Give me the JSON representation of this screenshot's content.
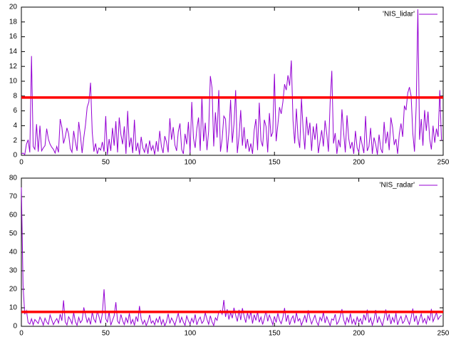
{
  "chart_data": [
    {
      "type": "line",
      "xlim": [
        0,
        250
      ],
      "xticks": [
        0,
        50,
        100,
        150,
        200,
        250
      ],
      "ylim": [
        0,
        20
      ],
      "yticks": [
        0,
        2,
        4,
        6,
        8,
        10,
        12,
        14,
        16,
        18,
        20
      ],
      "legend": "upper right",
      "hlines": [
        {
          "value": 7.8,
          "color": "#ff0000"
        }
      ],
      "x": [
        0,
        1,
        2,
        3,
        4,
        5,
        6,
        7,
        8,
        9,
        10,
        11,
        12,
        13,
        14,
        15,
        16,
        17,
        18,
        19,
        20,
        21,
        22,
        23,
        24,
        25,
        26,
        27,
        28,
        29,
        30,
        31,
        32,
        33,
        34,
        35,
        36,
        37,
        38,
        39,
        40,
        41,
        42,
        43,
        44,
        45,
        46,
        47,
        48,
        49,
        50,
        51,
        52,
        53,
        54,
        55,
        56,
        57,
        58,
        59,
        60,
        61,
        62,
        63,
        64,
        65,
        66,
        67,
        68,
        69,
        70,
        71,
        72,
        73,
        74,
        75,
        76,
        77,
        78,
        79,
        80,
        81,
        82,
        83,
        84,
        85,
        86,
        87,
        88,
        89,
        90,
        91,
        92,
        93,
        94,
        95,
        96,
        97,
        98,
        99,
        100,
        101,
        102,
        103,
        104,
        105,
        106,
        107,
        108,
        109,
        110,
        111,
        112,
        113,
        114,
        115,
        116,
        117,
        118,
        119,
        120,
        121,
        122,
        123,
        124,
        125,
        126,
        127,
        128,
        129,
        130,
        131,
        132,
        133,
        134,
        135,
        136,
        137,
        138,
        139,
        140,
        141,
        142,
        143,
        144,
        145,
        146,
        147,
        148,
        149,
        150,
        151,
        152,
        153,
        154,
        155,
        156,
        157,
        158,
        159,
        160,
        161,
        162,
        163,
        164,
        165,
        166,
        167,
        168,
        169,
        170,
        171,
        172,
        173,
        174,
        175,
        176,
        177,
        178,
        179,
        180,
        181,
        182,
        183,
        184,
        185,
        186,
        187,
        188,
        189,
        190,
        191,
        192,
        193,
        194,
        195,
        196,
        197,
        198,
        199,
        200,
        201,
        202,
        203,
        204,
        205,
        206,
        207,
        208,
        209,
        210,
        211,
        212,
        213,
        214,
        215,
        216,
        217,
        218,
        219,
        220,
        221,
        222,
        223,
        224,
        225,
        226,
        227,
        228,
        229,
        230,
        231,
        232,
        233,
        234,
        235,
        236,
        237,
        238,
        239,
        240,
        241,
        242,
        243,
        244,
        245,
        246,
        247,
        248,
        249
      ],
      "series": [
        {
          "name": "'NIS_lidar'",
          "color": "#9400d3",
          "values": [
            0.2,
            0.3,
            0.1,
            1.5,
            2.1,
            0.4,
            13.4,
            1.2,
            0.8,
            4.2,
            0.5,
            4.0,
            0.6,
            1.0,
            1.3,
            3.6,
            2.2,
            1.5,
            1.1,
            0.8,
            0.3,
            1.2,
            0.4,
            4.9,
            3.8,
            1.6,
            2.5,
            3.7,
            2.9,
            0.9,
            0.4,
            3.3,
            1.8,
            0.6,
            4.5,
            2.7,
            0.3,
            2.4,
            4.1,
            6.5,
            7.2,
            9.8,
            3.1,
            0.5,
            1.6,
            0.2,
            1.0,
            0.7,
            1.8,
            0.5,
            5.3,
            0.1,
            2.2,
            0.6,
            3.7,
            1.3,
            4.6,
            0.4,
            5.1,
            2.8,
            1.5,
            3.9,
            0.2,
            6.0,
            1.1,
            2.4,
            0.3,
            4.8,
            0.6,
            1.7,
            0.1,
            2.5,
            1.0,
            0.4,
            1.6,
            0.2,
            2.0,
            0.7,
            1.3,
            0.1,
            1.9,
            0.5,
            3.3,
            1.2,
            0.3,
            2.6,
            1.8,
            0.4,
            5.0,
            2.1,
            3.8,
            1.4,
            0.6,
            3.2,
            4.3,
            0.8,
            0.2,
            2.9,
            1.5,
            4.5,
            0.3,
            7.2,
            2.3,
            1.0,
            3.6,
            5.1,
            0.6,
            7.9,
            1.9,
            4.4,
            0.7,
            3.3,
            10.7,
            9.1,
            1.2,
            5.8,
            2.4,
            8.8,
            0.5,
            2.2,
            5.3,
            4.9,
            0.4,
            3.1,
            7.5,
            1.7,
            4.2,
            8.8,
            0.3,
            2.6,
            6.1,
            1.3,
            3.8,
            0.9,
            2.2,
            0.5,
            1.6,
            0.2,
            3.4,
            4.9,
            0.7,
            7.1,
            2.0,
            1.2,
            4.8,
            3.9,
            0.4,
            5.7,
            2.5,
            3.1,
            11.0,
            1.9,
            4.1,
            6.5,
            5.6,
            7.2,
            9.6,
            8.8,
            10.8,
            9.4,
            12.8,
            4.7,
            1.6,
            6.3,
            2.3,
            1.0,
            7.7,
            3.5,
            0.8,
            5.2,
            2.7,
            4.4,
            0.6,
            3.9,
            2.1,
            4.3,
            0.3,
            1.9,
            3.4,
            1.2,
            4.7,
            2.9,
            0.5,
            7.1,
            11.4,
            1.6,
            3.0,
            0.2,
            2.1,
            1.1,
            6.2,
            3.1,
            0.4,
            5.4,
            2.3,
            0.9,
            1.8,
            0.2,
            3.3,
            1.0,
            0.4,
            2.6,
            1.4,
            0.3,
            5.3,
            0.6,
            1.2,
            3.7,
            0.2,
            2.4,
            1.5,
            0.1,
            2.8,
            0.9,
            0.3,
            4.5,
            1.6,
            3.2,
            0.7,
            5.1,
            3.8,
            1.4,
            2.2,
            0.2,
            2.9,
            4.3,
            2.5,
            6.7,
            6.1,
            8.4,
            9.2,
            8.0,
            3.0,
            0.5,
            6.6,
            19.7,
            2.1,
            4.9,
            1.3,
            6.1,
            3.3,
            5.9,
            2.2,
            0.8,
            4.0,
            1.7,
            3.6,
            2.5,
            8.8,
            2.0
          ]
        }
      ]
    },
    {
      "type": "line",
      "xlim": [
        0,
        250
      ],
      "xticks": [
        0,
        50,
        100,
        150,
        200,
        250
      ],
      "ylim": [
        0,
        80
      ],
      "yticks": [
        0,
        10,
        20,
        30,
        40,
        50,
        60,
        70,
        80
      ],
      "legend": "upper right",
      "hlines": [
        {
          "value": 7.8,
          "color": "#ff0000"
        }
      ],
      "x": [
        0,
        1,
        2,
        3,
        4,
        5,
        6,
        7,
        8,
        9,
        10,
        11,
        12,
        13,
        14,
        15,
        16,
        17,
        18,
        19,
        20,
        21,
        22,
        23,
        24,
        25,
        26,
        27,
        28,
        29,
        30,
        31,
        32,
        33,
        34,
        35,
        36,
        37,
        38,
        39,
        40,
        41,
        42,
        43,
        44,
        45,
        46,
        47,
        48,
        49,
        50,
        51,
        52,
        53,
        54,
        55,
        56,
        57,
        58,
        59,
        60,
        61,
        62,
        63,
        64,
        65,
        66,
        67,
        68,
        69,
        70,
        71,
        72,
        73,
        74,
        75,
        76,
        77,
        78,
        79,
        80,
        81,
        82,
        83,
        84,
        85,
        86,
        87,
        88,
        89,
        90,
        91,
        92,
        93,
        94,
        95,
        96,
        97,
        98,
        99,
        100,
        101,
        102,
        103,
        104,
        105,
        106,
        107,
        108,
        109,
        110,
        111,
        112,
        113,
        114,
        115,
        116,
        117,
        118,
        119,
        120,
        121,
        122,
        123,
        124,
        125,
        126,
        127,
        128,
        129,
        130,
        131,
        132,
        133,
        134,
        135,
        136,
        137,
        138,
        139,
        140,
        141,
        142,
        143,
        144,
        145,
        146,
        147,
        148,
        149,
        150,
        151,
        152,
        153,
        154,
        155,
        156,
        157,
        158,
        159,
        160,
        161,
        162,
        163,
        164,
        165,
        166,
        167,
        168,
        169,
        170,
        171,
        172,
        173,
        174,
        175,
        176,
        177,
        178,
        179,
        180,
        181,
        182,
        183,
        184,
        185,
        186,
        187,
        188,
        189,
        190,
        191,
        192,
        193,
        194,
        195,
        196,
        197,
        198,
        199,
        200,
        201,
        202,
        203,
        204,
        205,
        206,
        207,
        208,
        209,
        210,
        211,
        212,
        213,
        214,
        215,
        216,
        217,
        218,
        219,
        220,
        221,
        222,
        223,
        224,
        225,
        226,
        227,
        228,
        229,
        230,
        231,
        232,
        233,
        234,
        235,
        236,
        237,
        238,
        239,
        240,
        241,
        242,
        243,
        244,
        245,
        246,
        247,
        248,
        249
      ],
      "series": [
        {
          "name": "'NIS_radar'",
          "color": "#9400d3",
          "values": [
            75,
            22,
            6.5,
            8.5,
            2.0,
            1.2,
            4.1,
            0.8,
            3.7,
            2.6,
            1.5,
            5.0,
            3.2,
            0.6,
            4.4,
            2.3,
            1.1,
            6.1,
            3.5,
            0.9,
            2.8,
            4.2,
            1.7,
            6.6,
            3.0,
            14.0,
            2.4,
            0.7,
            5.2,
            3.6,
            1.3,
            7.4,
            2.5,
            0.5,
            4.8,
            1.9,
            3.3,
            10.2,
            6.1,
            2.2,
            4.5,
            1.0,
            7.6,
            3.8,
            2.1,
            8.3,
            5.2,
            1.6,
            6.9,
            20.0,
            4.1,
            2.3,
            7.8,
            0.6,
            3.2,
            5.7,
            13.0,
            2.8,
            1.5,
            6.4,
            3.1,
            0.9,
            4.6,
            2.0,
            7.0,
            1.4,
            3.7,
            0.5,
            5.3,
            2.5,
            11.0,
            4.0,
            1.2,
            3.3,
            0.4,
            2.6,
            6.2,
            1.7,
            3.0,
            0.8,
            4.2,
            2.1,
            5.5,
            1.0,
            3.6,
            0.3,
            2.4,
            6.8,
            1.5,
            4.5,
            2.7,
            0.6,
            3.9,
            7.1,
            1.8,
            4.9,
            2.3,
            0.5,
            5.6,
            3.0,
            1.2,
            4.3,
            2.0,
            6.4,
            0.8,
            3.5,
            5.0,
            1.6,
            2.9,
            7.3,
            3.8,
            1.1,
            5.7,
            2.4,
            0.4,
            4.6,
            3.2,
            7.9,
            8.6,
            6.5,
            14.2,
            5.1,
            9.2,
            3.7,
            7.5,
            4.4,
            10.0,
            6.0,
            2.6,
            8.9,
            3.4,
            9.8,
            5.5,
            2.0,
            7.2,
            4.1,
            8.0,
            1.5,
            6.3,
            3.2,
            7.8,
            2.2,
            5.0,
            1.0,
            4.3,
            8.4,
            2.7,
            6.1,
            3.6,
            0.9,
            5.4,
            2.1,
            7.0,
            3.3,
            1.4,
            4.8,
            9.9,
            2.5,
            6.2,
            0.8,
            3.9,
            5.6,
            1.7,
            7.4,
            2.9,
            4.2,
            0.6,
            3.1,
            5.8,
            2.0,
            8.7,
            4.5,
            1.3,
            3.7,
            6.0,
            2.4,
            0.5,
            4.9,
            3.0,
            7.6,
            1.8,
            5.2,
            2.7,
            0.4,
            4.0,
            3.3,
            6.5,
            1.1,
            2.6,
            5.5,
            9.3,
            3.6,
            0.9,
            4.7,
            2.2,
            6.9,
            1.5,
            3.8,
            0.7,
            5.0,
            2.4,
            4.1,
            1.0,
            6.3,
            3.2,
            9.0,
            2.0,
            4.6,
            0.6,
            3.5,
            8.8,
            1.9,
            5.1,
            2.7,
            0.4,
            4.4,
            9.1,
            3.0,
            6.6,
            1.2,
            4.8,
            2.3,
            7.1,
            0.8,
            3.6,
            5.4,
            1.6,
            2.9,
            6.0,
            3.3,
            1.0,
            4.7,
            9.6,
            2.5,
            5.8,
            0.7,
            3.9,
            6.7,
            2.1,
            4.2,
            1.4,
            5.6,
            3.1,
            9.4,
            2.6,
            4.9,
            7.4,
            3.7,
            5.2,
            6.0
          ]
        }
      ]
    }
  ]
}
